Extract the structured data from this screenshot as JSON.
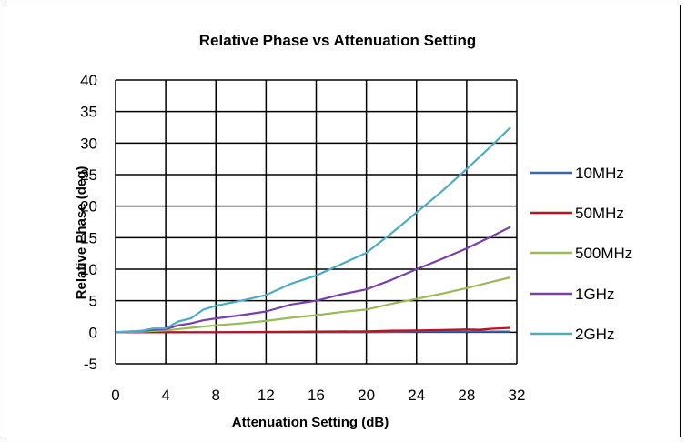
{
  "chart_data": {
    "type": "line",
    "title": "Relative Phase vs Attenuation Setting",
    "xlabel": "Attenuation Setting (dB)",
    "ylabel": "Relative Phase (deg)",
    "xlim": [
      0,
      32
    ],
    "ylim": [
      -5,
      40
    ],
    "xticks": [
      0,
      4,
      8,
      12,
      16,
      20,
      24,
      28,
      32
    ],
    "yticks": [
      -5,
      0,
      5,
      10,
      15,
      20,
      25,
      30,
      35,
      40
    ],
    "grid": true,
    "legend_position": "right",
    "series": [
      {
        "name": "10MHz",
        "color": "#3b64ad",
        "x": [
          0,
          4,
          8,
          12,
          16,
          20,
          24,
          28,
          31.5
        ],
        "y": [
          0,
          0,
          0,
          0,
          0,
          0,
          0.1,
          0.1,
          0.1
        ]
      },
      {
        "name": "50MHz",
        "color": "#c0111f",
        "x": [
          0,
          4,
          8,
          12,
          16,
          20,
          22,
          24,
          26,
          28,
          29,
          30,
          31.5
        ],
        "y": [
          0,
          0,
          0,
          0.05,
          0.1,
          0.15,
          0.25,
          0.3,
          0.35,
          0.45,
          0.4,
          0.55,
          0.7
        ]
      },
      {
        "name": "500MHz",
        "color": "#9bbb59",
        "x": [
          0,
          2,
          4,
          6,
          8,
          10,
          12,
          14,
          16,
          18,
          20,
          22,
          24,
          26,
          28,
          30,
          31.5
        ],
        "y": [
          0,
          0.1,
          0.3,
          0.7,
          1.1,
          1.4,
          1.8,
          2.3,
          2.7,
          3.2,
          3.6,
          4.5,
          5.3,
          6.1,
          7.0,
          8.0,
          8.7
        ]
      },
      {
        "name": "1GHz",
        "color": "#7a3fa8",
        "x": [
          0,
          2,
          3,
          4,
          5,
          6,
          7,
          8,
          10,
          12,
          14,
          16,
          18,
          20,
          22,
          24,
          26,
          28,
          30,
          31.5
        ],
        "y": [
          0,
          0.2,
          0.4,
          0.5,
          1.1,
          1.4,
          1.9,
          2.2,
          2.7,
          3.3,
          4.4,
          5.0,
          6.0,
          6.8,
          8.3,
          10.0,
          11.6,
          13.3,
          15.2,
          16.7
        ]
      },
      {
        "name": "2GHz",
        "color": "#4bacc6",
        "x": [
          0,
          2,
          3,
          4,
          5,
          6,
          7,
          8,
          10,
          12,
          14,
          16,
          18,
          20,
          22,
          24,
          26,
          28,
          30,
          31.5
        ],
        "y": [
          0,
          0.2,
          0.6,
          0.6,
          1.7,
          2.2,
          3.6,
          4.2,
          5.0,
          5.9,
          7.7,
          9.0,
          10.8,
          12.6,
          15.7,
          19.0,
          22.3,
          25.9,
          29.6,
          32.5
        ]
      }
    ]
  }
}
